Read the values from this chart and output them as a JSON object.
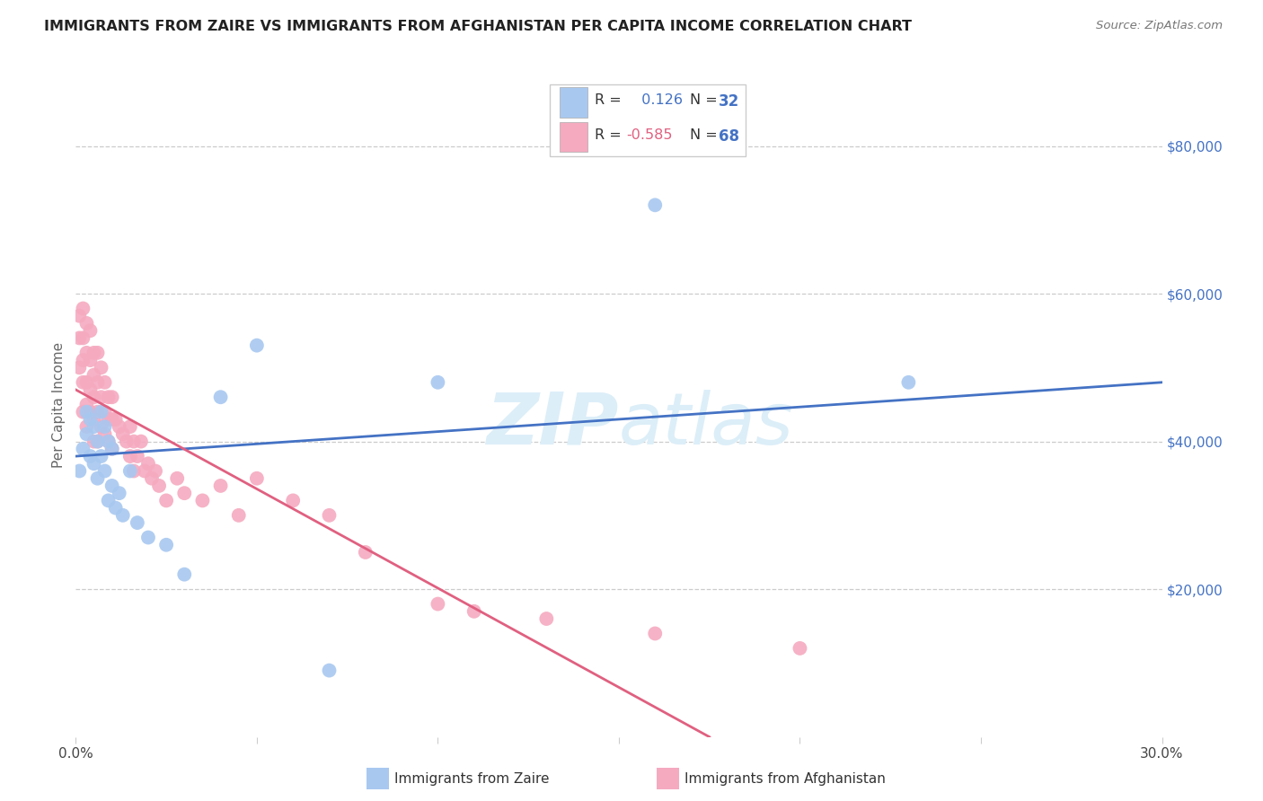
{
  "title": "IMMIGRANTS FROM ZAIRE VS IMMIGRANTS FROM AFGHANISTAN PER CAPITA INCOME CORRELATION CHART",
  "source": "Source: ZipAtlas.com",
  "ylabel": "Per Capita Income",
  "xlim": [
    0.0,
    0.3
  ],
  "ylim": [
    0,
    90000
  ],
  "xtick_pos": [
    0.0,
    0.05,
    0.1,
    0.15,
    0.2,
    0.25,
    0.3
  ],
  "xtick_labels": [
    "0.0%",
    "",
    "",
    "",
    "",
    "",
    "30.0%"
  ],
  "ytick_values": [
    80000,
    60000,
    40000,
    20000
  ],
  "ytick_labels": [
    "$80,000",
    "$60,000",
    "$40,000",
    "$20,000"
  ],
  "legend_label1": "Immigrants from Zaire",
  "legend_label2": "Immigrants from Afghanistan",
  "R1": 0.126,
  "N1": 32,
  "R2": -0.585,
  "N2": 68,
  "color_zaire": "#a8c8f0",
  "color_afghanistan": "#f5aac0",
  "color_zaire_line": "#4472c4",
  "color_afghanistan_line": "#e06080",
  "background_color": "#ffffff",
  "zaire_line_x0": 0.0,
  "zaire_line_y0": 38000,
  "zaire_line_x1": 0.3,
  "zaire_line_y1": 48000,
  "afghan_line_x0": 0.0,
  "afghan_line_y0": 47000,
  "afghan_line_x1": 0.175,
  "afghan_line_y1": 0,
  "zaire_x": [
    0.001,
    0.002,
    0.003,
    0.003,
    0.004,
    0.004,
    0.005,
    0.005,
    0.006,
    0.006,
    0.007,
    0.007,
    0.008,
    0.008,
    0.009,
    0.009,
    0.01,
    0.01,
    0.011,
    0.012,
    0.013,
    0.015,
    0.017,
    0.02,
    0.025,
    0.03,
    0.04,
    0.05,
    0.07,
    0.1,
    0.16,
    0.23
  ],
  "zaire_y": [
    36000,
    39000,
    41000,
    44000,
    38000,
    43000,
    37000,
    42000,
    40000,
    35000,
    44000,
    38000,
    36000,
    42000,
    32000,
    40000,
    34000,
    39000,
    31000,
    33000,
    30000,
    36000,
    29000,
    27000,
    26000,
    22000,
    46000,
    53000,
    9000,
    48000,
    72000,
    48000
  ],
  "afghan_x": [
    0.001,
    0.001,
    0.001,
    0.002,
    0.002,
    0.002,
    0.002,
    0.002,
    0.003,
    0.003,
    0.003,
    0.003,
    0.003,
    0.004,
    0.004,
    0.004,
    0.004,
    0.005,
    0.005,
    0.005,
    0.005,
    0.005,
    0.006,
    0.006,
    0.006,
    0.006,
    0.007,
    0.007,
    0.007,
    0.008,
    0.008,
    0.008,
    0.009,
    0.009,
    0.009,
    0.01,
    0.01,
    0.01,
    0.011,
    0.012,
    0.013,
    0.014,
    0.015,
    0.015,
    0.016,
    0.016,
    0.017,
    0.018,
    0.019,
    0.02,
    0.021,
    0.022,
    0.023,
    0.025,
    0.028,
    0.03,
    0.035,
    0.04,
    0.045,
    0.05,
    0.06,
    0.07,
    0.08,
    0.1,
    0.11,
    0.13,
    0.16,
    0.2
  ],
  "afghan_y": [
    57000,
    54000,
    50000,
    58000,
    54000,
    51000,
    48000,
    44000,
    56000,
    52000,
    48000,
    45000,
    42000,
    55000,
    51000,
    47000,
    44000,
    52000,
    49000,
    46000,
    43000,
    40000,
    52000,
    48000,
    44000,
    40000,
    50000,
    46000,
    42000,
    48000,
    44000,
    41000,
    46000,
    43000,
    40000,
    46000,
    43000,
    39000,
    43000,
    42000,
    41000,
    40000,
    42000,
    38000,
    40000,
    36000,
    38000,
    40000,
    36000,
    37000,
    35000,
    36000,
    34000,
    32000,
    35000,
    33000,
    32000,
    34000,
    30000,
    35000,
    32000,
    30000,
    25000,
    18000,
    17000,
    16000,
    14000,
    12000
  ]
}
